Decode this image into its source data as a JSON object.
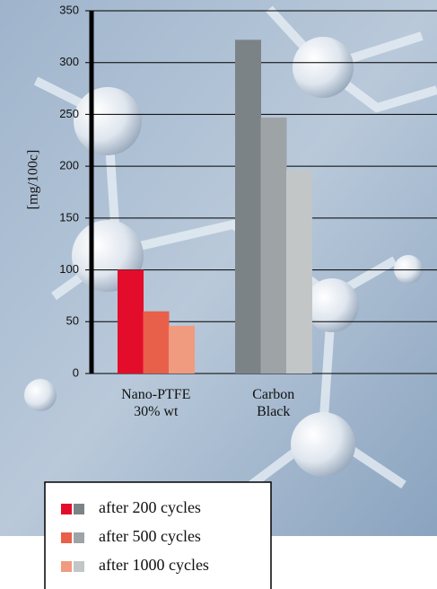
{
  "chart_data": {
    "type": "bar",
    "y_label": "[mg/100c]",
    "categories": [
      "Nano-PTFE\n30% wt",
      "Carbon\nBlack"
    ],
    "series": [
      {
        "name": "after 200 cycles",
        "colors": [
          "#e30d2b",
          "#7c8387"
        ],
        "values": [
          100,
          322
        ]
      },
      {
        "name": "after 500 cycles",
        "colors": [
          "#e8604a",
          "#9ea3a6"
        ],
        "values": [
          60,
          247
        ]
      },
      {
        "name": "after 1000 cycles",
        "colors": [
          "#f09a80",
          "#c2c6c7"
        ],
        "values": [
          46,
          196
        ]
      }
    ],
    "ylim": [
      0,
      350
    ],
    "yticks": [
      0,
      50,
      100,
      150,
      200,
      250,
      300,
      350
    ],
    "grid": true
  }
}
